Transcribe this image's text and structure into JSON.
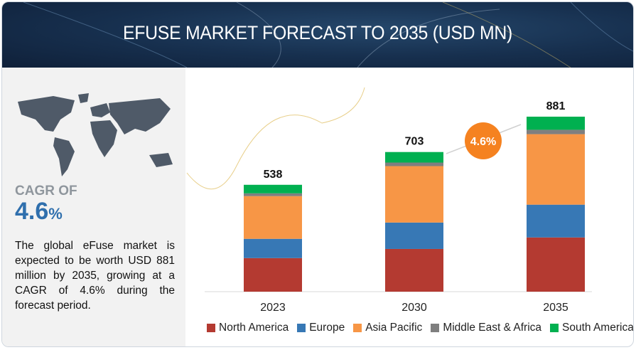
{
  "header": {
    "title": "EFUSE MARKET FORECAST TO 2035 (USD MN)"
  },
  "sidebar": {
    "cagr_label": "CAGR OF",
    "cagr_value": "4.6",
    "cagr_unit": "%",
    "description": "The global eFuse market is expected to be worth USD 881 million by 2035, growing at a CAGR of 4.6% during the forecast period."
  },
  "chart_data": {
    "type": "bar",
    "stacked": true,
    "title": "EFUSE MARKET FORECAST TO 2035 (USD MN)",
    "categories": [
      "2023",
      "2030",
      "2035"
    ],
    "totals": [
      538,
      703,
      881
    ],
    "series": [
      {
        "name": "North America",
        "color": "#b43a31",
        "values": [
          169,
          215,
          273
        ]
      },
      {
        "name": "Europe",
        "color": "#3778b5",
        "values": [
          97,
          133,
          165
        ]
      },
      {
        "name": "Asia Pacific",
        "color": "#f79646",
        "values": [
          215,
          284,
          355
        ]
      },
      {
        "name": "Middle East & Africa",
        "color": "#7f7f7f",
        "values": [
          14,
          18,
          22
        ]
      },
      {
        "name": "South America",
        "color": "#00b050",
        "values": [
          43,
          53,
          66
        ]
      }
    ],
    "annotation": "4.6%",
    "annotation_color": "#f58220",
    "ylim": [
      0,
      1000
    ],
    "grid": false,
    "legend": "bottom"
  }
}
